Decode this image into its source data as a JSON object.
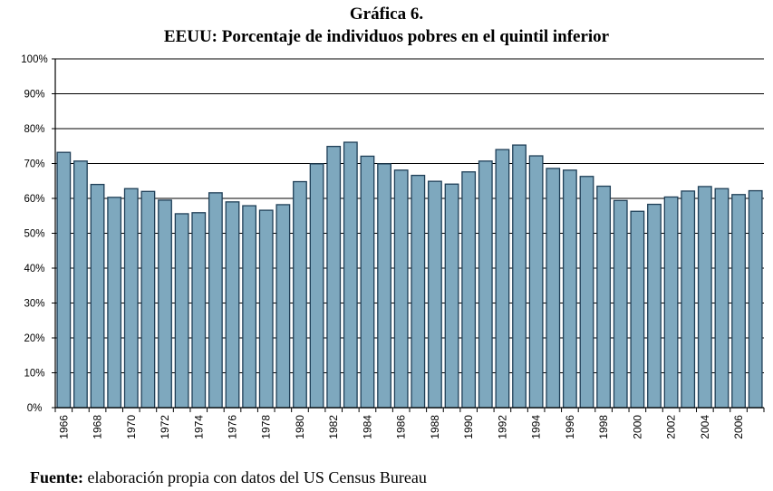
{
  "chart_data": {
    "type": "bar",
    "title": "Gráfica 6.",
    "subtitle": "EEUU: Porcentaje de individuos pobres en el quintil inferior",
    "xlabel": "",
    "ylabel": "",
    "ylim": [
      0,
      100
    ],
    "y_ticks": [
      "0%",
      "10%",
      "20%",
      "30%",
      "40%",
      "50%",
      "60%",
      "70%",
      "80%",
      "90%",
      "100%"
    ],
    "categories": [
      "1966",
      "1967",
      "1968",
      "1969",
      "1970",
      "1971",
      "1972",
      "1973",
      "1974",
      "1975",
      "1976",
      "1977",
      "1978",
      "1979",
      "1980",
      "1981",
      "1982",
      "1983",
      "1984",
      "1985",
      "1986",
      "1987",
      "1988",
      "1989",
      "1990",
      "1991",
      "1992",
      "1993",
      "1994",
      "1995",
      "1996",
      "1997",
      "1998",
      "1999",
      "2000",
      "2001",
      "2002",
      "2003",
      "2004",
      "2005",
      "2006",
      "2007"
    ],
    "x_tick_labels": [
      "1966",
      "1968",
      "1970",
      "1972",
      "1974",
      "1976",
      "1978",
      "1980",
      "1982",
      "1984",
      "1986",
      "1988",
      "1990",
      "1992",
      "1994",
      "1996",
      "1998",
      "2000",
      "2002",
      "2004",
      "2006"
    ],
    "values": [
      73.2,
      70.7,
      64.0,
      60.3,
      62.8,
      62.0,
      59.5,
      55.6,
      55.9,
      61.6,
      59.0,
      57.9,
      56.6,
      58.2,
      64.8,
      69.9,
      74.9,
      76.1,
      72.1,
      69.9,
      68.1,
      66.6,
      64.9,
      64.1,
      67.6,
      70.7,
      74.0,
      75.3,
      72.2,
      68.6,
      68.1,
      66.3,
      63.5,
      59.4,
      56.3,
      58.3,
      60.4,
      62.1,
      63.4,
      62.8,
      61.1,
      62.2
    ],
    "bar_color": "#7ea8be",
    "bar_edge_color": "#1f3f57",
    "grid": true,
    "legend": "none"
  },
  "source": {
    "label": "Fuente:",
    "text": " elaboración propia con datos del US Census Bureau"
  }
}
